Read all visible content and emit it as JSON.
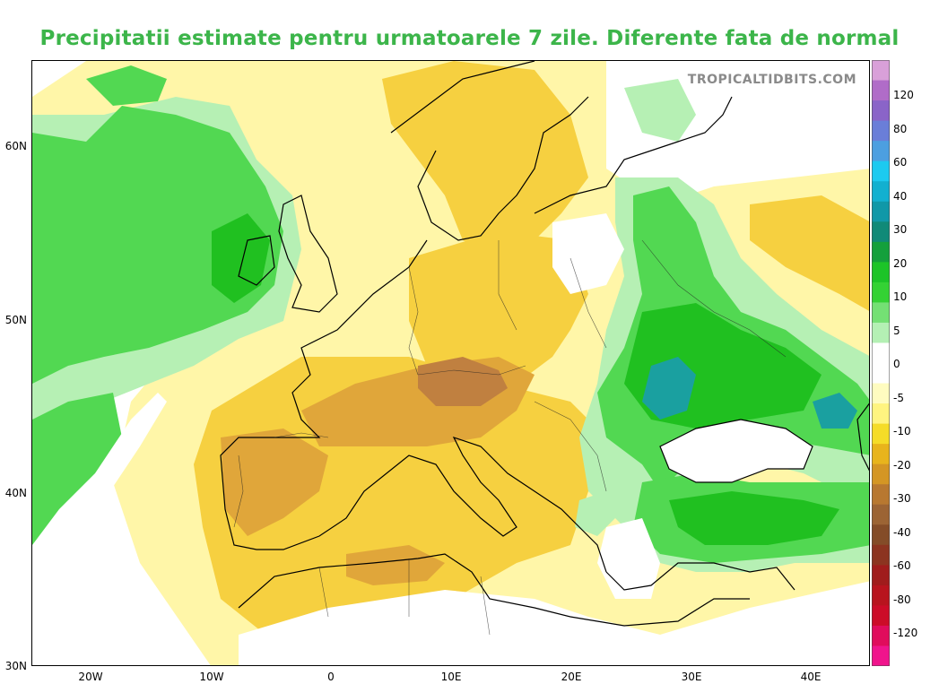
{
  "title": "Precipitatii estimate pentru urmatoarele 7 zile. Diferente fata de normal",
  "watermark": "TROPICALTIDBITS.COM",
  "lat_labels": [
    "60N",
    "50N",
    "40N",
    "30N"
  ],
  "lon_labels": [
    "20W",
    "10W",
    "0",
    "10E",
    "20E",
    "30E",
    "40E"
  ],
  "colorbar": {
    "labels": [
      "120",
      "80",
      "60",
      "40",
      "30",
      "20",
      "10",
      "5",
      "0",
      "-5",
      "-10",
      "-20",
      "-30",
      "-40",
      "-60",
      "-80",
      "-120"
    ],
    "colors": [
      "#d9a0d9",
      "#b06cc8",
      "#8a64c8",
      "#6a7ed8",
      "#4c9fe0",
      "#1ccaf0",
      "#12b0d0",
      "#1098a8",
      "#108a78",
      "#14a03c",
      "#1cc428",
      "#34d234",
      "#74e074",
      "#b4f0b4",
      "#ffffff",
      "#ffffff",
      "#fffcc0",
      "#fff480",
      "#f5dc28",
      "#e8b41c",
      "#d49624",
      "#b87830",
      "#9c6434",
      "#844c28",
      "#8c3420",
      "#a01c1c",
      "#b8141e",
      "#cc0c28",
      "#e00c5c",
      "#f0148c"
    ]
  },
  "colors": {
    "title": "#3cb54a",
    "dry_light": "#fff6a8",
    "dry_mid": "#f6d040",
    "dry_strong": "#e0a63a",
    "dry_extreme": "#c08040",
    "wet_light": "#b6f0b4",
    "wet_mid": "#52d852",
    "wet_strong": "#20c020",
    "wet_extreme": "#1aa0a0"
  }
}
